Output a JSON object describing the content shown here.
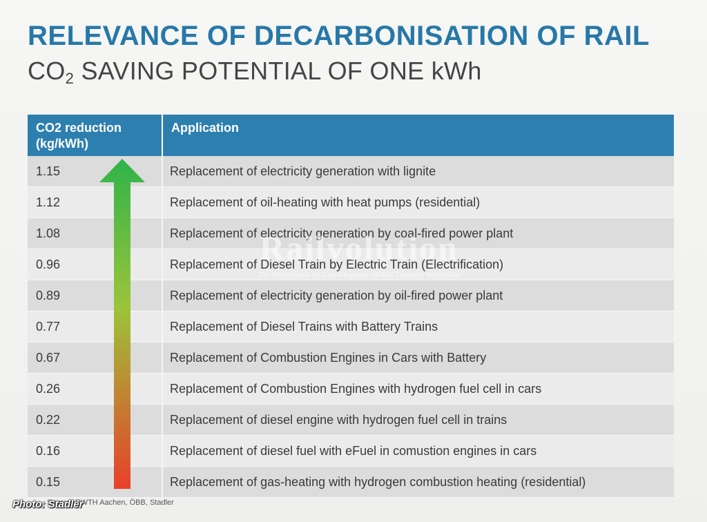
{
  "header": {
    "title": "RELEVANCE OF DECARBONISATION OF RAIL",
    "subtitle_pre": "CO",
    "subtitle_sub": "2",
    "subtitle_post": " SAVING POTENTIAL OF ONE kWh"
  },
  "table": {
    "col1_header_line1": "CO2 reduction",
    "col1_header_line2": "(kg/kWh)",
    "col2_header": "Application",
    "rows": [
      {
        "value": "1.15",
        "application": "Replacement of electricity generation with lignite"
      },
      {
        "value": "1.12",
        "application": "Replacement of oil-heating with heat pumps (residential)"
      },
      {
        "value": "1.08",
        "application": "Replacement of electricity generation by coal-fired power plant"
      },
      {
        "value": "0.96",
        "application": "Replacement of Diesel Train by Electric Train (Electrification)"
      },
      {
        "value": "0.89",
        "application": "Replacement of electricity generation by oil-fired power plant"
      },
      {
        "value": "0.77",
        "application": "Replacement of Diesel Trains with Battery Trains"
      },
      {
        "value": "0.67",
        "application": "Replacement of Combustion Engines in Cars with Battery"
      },
      {
        "value": "0.26",
        "application": "Replacement of Combustion Engines with hydrogen fuel cell in cars"
      },
      {
        "value": "0.22",
        "application": "Replacement of diesel engine with hydrogen fuel cell in trains"
      },
      {
        "value": "0.16",
        "application": "Replacement of diesel fuel with eFuel in comustion engines in cars"
      },
      {
        "value": "0.15",
        "application": "Replacement of gas-heating with hydrogen combustion heating (residential)"
      }
    ]
  },
  "arrow": {
    "icon": "up-arrow-gradient-icon",
    "color_top": "#2fb34a",
    "color_mid": "#9bc43a",
    "color_bottom": "#e8402a"
  },
  "watermark": {
    "title": "Railvolution",
    "subtitle": "The Professional On Line Magazine Of Rail Transport Worldwide"
  },
  "source": "Source: RWTH Aachen, ÖBB, Stadler",
  "photo_credit": "Photo: Stadler",
  "colors": {
    "title": "#2778a8",
    "header_bg": "#2d7fb0",
    "row_odd": "#dcdcdc",
    "row_even": "#ebebeb"
  }
}
